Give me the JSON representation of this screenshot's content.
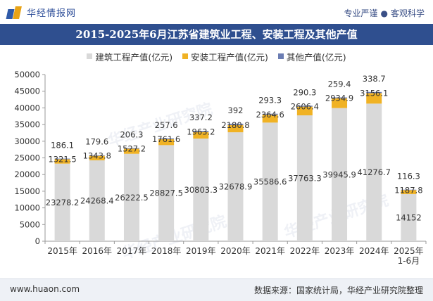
{
  "header": {
    "site_name": "华经情报网",
    "tagline_left": "专业严谨",
    "tagline_sep": "●",
    "tagline_right": "客观科学"
  },
  "footer": {
    "url": "www.huaon.com",
    "source": "数据来源：国家统计局，华经产业研究院整理"
  },
  "watermarks": [
    "华经产业研究院",
    "华经产业研究院",
    "华经产业研究院"
  ],
  "colors": {
    "title_bg": "#2f4f8f",
    "construction": "#d9d9d9",
    "installation": "#f0b224",
    "other": "#6b7db3"
  },
  "chart_data": {
    "type": "bar",
    "stacked": true,
    "title": "2015-2025年6月江苏省建筑业工程、安装工程及其他产值",
    "categories": [
      "2015年",
      "2016年",
      "2017年",
      "2018年",
      "2019年",
      "2020年",
      "2021年",
      "2022年",
      "2023年",
      "2024年",
      "2025年 1-6月"
    ],
    "series": [
      {
        "name": "建筑工程产值(亿元)",
        "values": [
          23278.2,
          24268.4,
          26222.5,
          28827.5,
          30803.3,
          32678.9,
          35586.6,
          37763.3,
          39945.9,
          41276.7,
          14152
        ]
      },
      {
        "name": "安装工程产值(亿元)",
        "values": [
          1321.5,
          1343.8,
          1527.2,
          1761.6,
          1963.2,
          2180.8,
          2364.6,
          2606.4,
          2934.9,
          3156.1,
          1187.8
        ]
      },
      {
        "name": "其他产值(亿元)",
        "values": [
          186.1,
          179.6,
          206.3,
          257.6,
          337.2,
          392,
          293.3,
          290.3,
          259.4,
          338.7,
          116.3
        ]
      }
    ],
    "yticks": [
      "0",
      "5000",
      "10000",
      "15000",
      "20000",
      "25000",
      "30000",
      "35000",
      "40000",
      "45000",
      "50000"
    ],
    "ylim": [
      0,
      50000
    ],
    "legend_position": "top-center",
    "grid": false
  }
}
